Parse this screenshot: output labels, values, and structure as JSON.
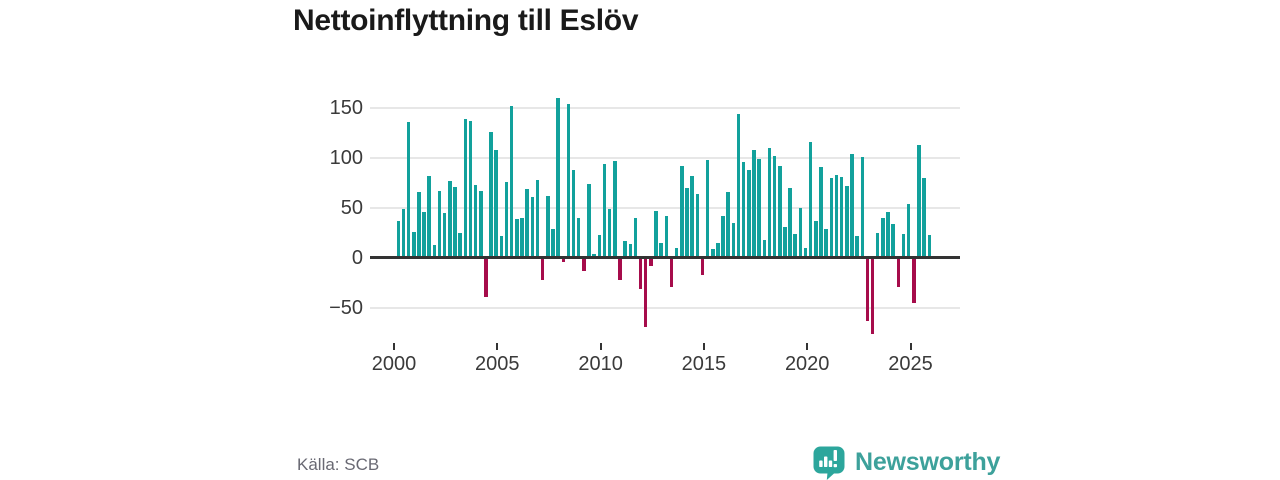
{
  "title": "Nettoinflyttning till Eslöv",
  "source": "Källa: SCB",
  "brand": {
    "name": "Newsworthy",
    "icon": "speech-bubble-chart-icon",
    "color": "#3da19b"
  },
  "colors": {
    "positive": "#12a19c",
    "negative": "#a60c4b",
    "axis": "#333333",
    "grid": "#e7e7e7",
    "tick_text": "#3a3a3a",
    "muted_text": "#696973",
    "logo_teal": "#2ca69c"
  },
  "chart_data": {
    "type": "bar",
    "title": "Nettoinflyttning till Eslöv",
    "xlabel": "",
    "ylabel": "",
    "x_unit": "quarter",
    "start_year": 2000,
    "periods_per_year": 4,
    "ylim": [
      -80,
      165
    ],
    "grid": true,
    "legend": false,
    "y_ticks": [
      150,
      100,
      50,
      0,
      -50
    ],
    "y_tick_labels": [
      "150",
      "100",
      "50",
      "0",
      "−50"
    ],
    "x_ticks": [
      2000,
      2005,
      2010,
      2015,
      2020,
      2025
    ],
    "values": [
      35,
      47,
      134,
      24,
      64,
      44,
      80,
      11,
      65,
      43,
      75,
      69,
      23,
      137,
      135,
      71,
      65,
      -38,
      124,
      106,
      20,
      74,
      150,
      37,
      38,
      67,
      59,
      76,
      -21,
      60,
      27,
      158,
      -3,
      152,
      86,
      38,
      -12,
      72,
      2,
      21,
      92,
      47,
      95,
      -21,
      15,
      12,
      38,
      -30,
      -68,
      -7,
      45,
      13,
      40,
      -28,
      8,
      90,
      68,
      80,
      62,
      -16,
      96,
      7,
      13,
      40,
      64,
      33,
      142,
      94,
      86,
      106,
      97,
      16,
      108,
      100,
      90,
      29,
      68,
      22,
      48,
      8,
      114,
      35,
      89,
      27,
      78,
      81,
      79,
      70,
      102,
      20,
      99,
      -62,
      -75,
      23,
      38,
      44,
      32,
      -28,
      22,
      52,
      -44,
      111,
      78,
      21
    ]
  }
}
